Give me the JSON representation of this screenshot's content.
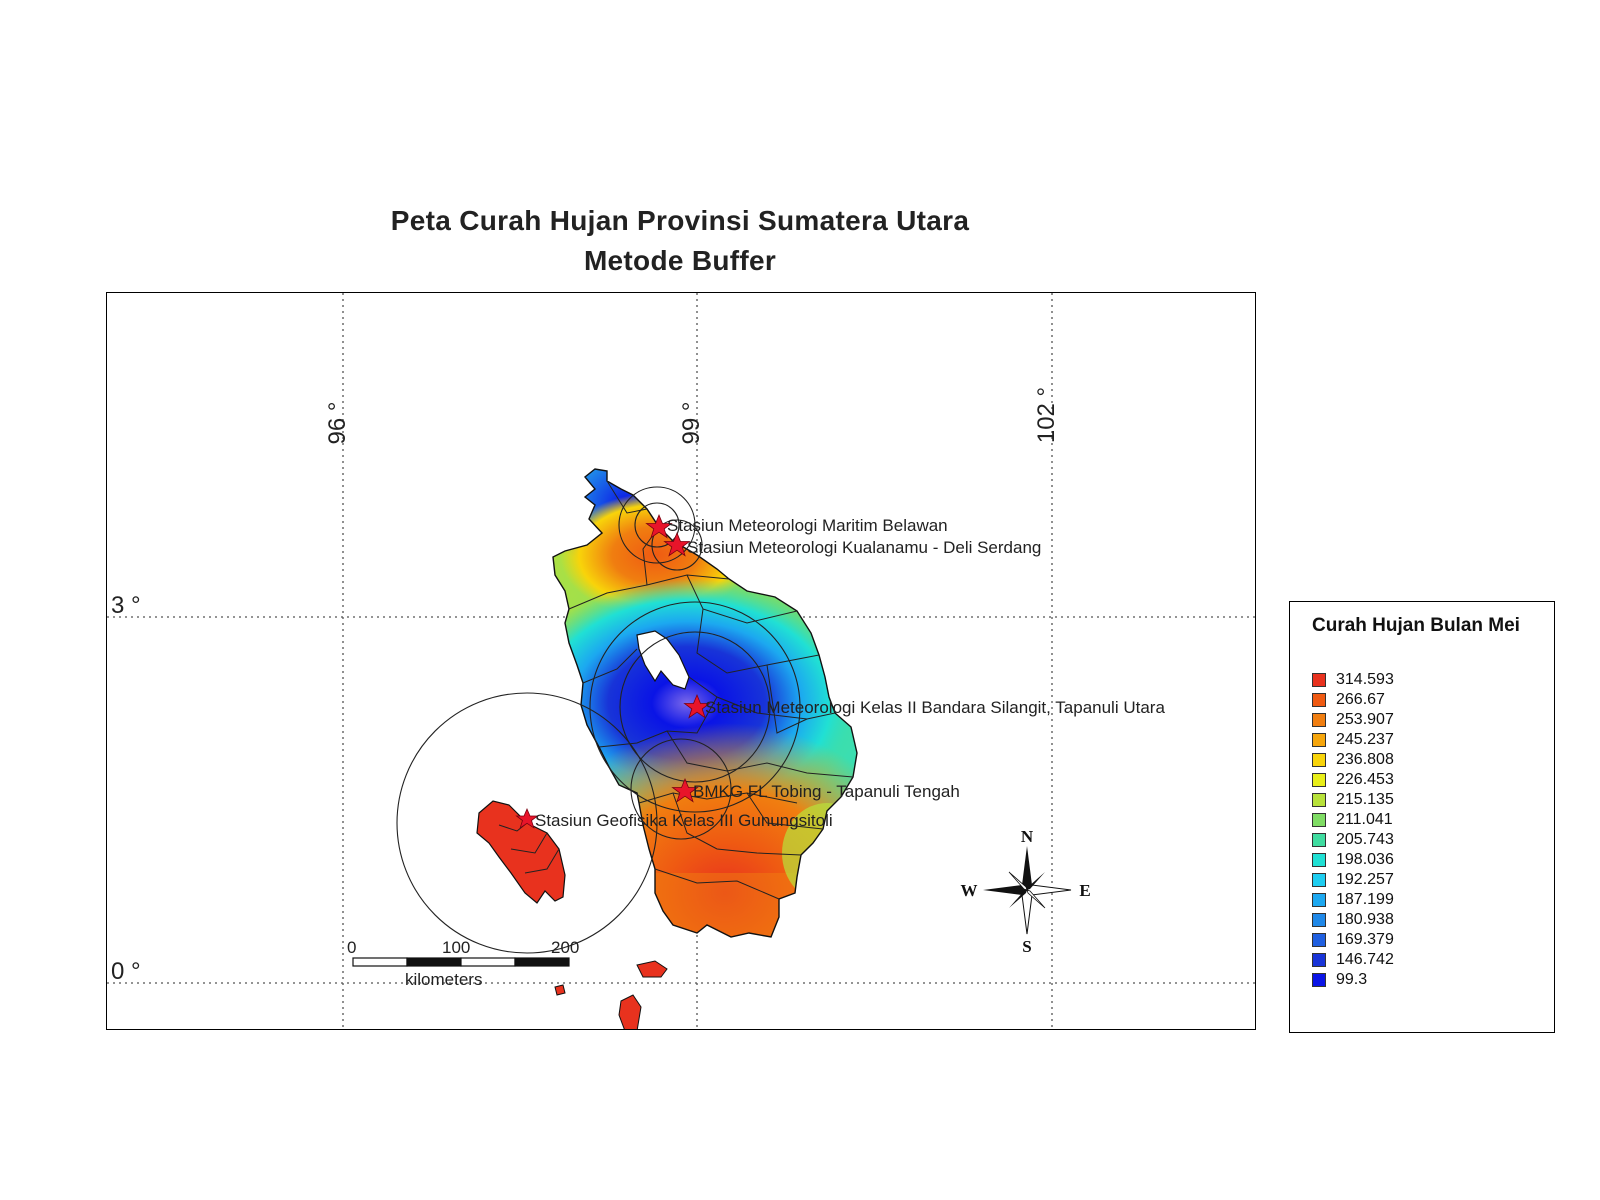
{
  "title": {
    "line1": "Peta Curah Hujan Provinsi Sumatera Utara",
    "line2": "Metode Buffer"
  },
  "grid": {
    "longitudes": [
      "96 °",
      "99 °",
      "102 °"
    ],
    "latitudes": [
      "3 °",
      "0 °"
    ]
  },
  "stations": [
    {
      "name": "Stasiun Meteorologi Maritim Belawan"
    },
    {
      "name": "Stasiun Meteorologi Kualanamu - Deli Serdang"
    },
    {
      "name": "Stasiun Meteorologi Kelas II Bandara Silangit, Tapanuli Utara"
    },
    {
      "name": "BMKG FL Tobing - Tapanuli Tengah"
    },
    {
      "name": "Stasiun Geofisika Kelas III Gunungsitoli"
    }
  ],
  "scale_bar": {
    "ticks": [
      "0",
      "100",
      "200"
    ],
    "unit": "kilometers"
  },
  "compass": {
    "n": "N",
    "s": "S",
    "e": "E",
    "w": "W"
  },
  "legend": {
    "title": "Curah Hujan Bulan Mei",
    "items": [
      {
        "value": "314.593",
        "color": "#e8321e"
      },
      {
        "value": "266.67",
        "color": "#ef5a12"
      },
      {
        "value": "253.907",
        "color": "#f07e10"
      },
      {
        "value": "245.237",
        "color": "#f6a60c"
      },
      {
        "value": "236.808",
        "color": "#f8d40a"
      },
      {
        "value": "226.453",
        "color": "#e8ee18"
      },
      {
        "value": "215.135",
        "color": "#b8e23a"
      },
      {
        "value": "211.041",
        "color": "#7fdc64"
      },
      {
        "value": "205.743",
        "color": "#3fdca0"
      },
      {
        "value": "198.036",
        "color": "#20e0d4"
      },
      {
        "value": "192.257",
        "color": "#1ecdf0"
      },
      {
        "value": "187.199",
        "color": "#1ca8f0"
      },
      {
        "value": "180.938",
        "color": "#1f88e8"
      },
      {
        "value": "169.379",
        "color": "#1f5fe0"
      },
      {
        "value": "146.742",
        "color": "#1834d8"
      },
      {
        "value": "99.3",
        "color": "#0a14e6"
      }
    ]
  }
}
